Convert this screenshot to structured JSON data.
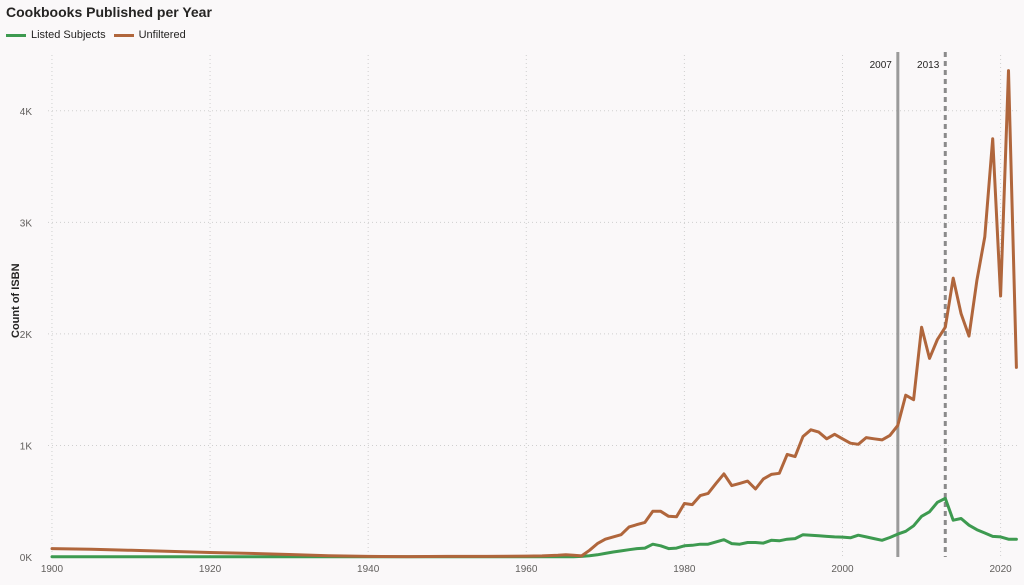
{
  "chart_data": {
    "type": "line",
    "title": "Cookbooks Published per Year",
    "xlabel": "",
    "ylabel": "Count of ISBN",
    "xlim": [
      1899.5,
      2022.2
    ],
    "ylim": [
      0,
      4500
    ],
    "x_ticks": [
      1900,
      1920,
      1940,
      1960,
      1980,
      2000,
      2020
    ],
    "y_ticks": [
      {
        "value": 0,
        "label": "0K"
      },
      {
        "value": 1000,
        "label": "1K"
      },
      {
        "value": 2000,
        "label": "2K"
      },
      {
        "value": 3000,
        "label": "3K"
      },
      {
        "value": 4000,
        "label": "4K"
      }
    ],
    "grid": true,
    "legend_position": "top-left",
    "reference_lines": [
      {
        "x": 2007,
        "label": "2007",
        "style": "solid"
      },
      {
        "x": 2013,
        "label": "2013",
        "style": "dashed"
      }
    ],
    "series": [
      {
        "name": "Listed Subjects",
        "color": "#3d9a50",
        "points": [
          [
            1900,
            2
          ],
          [
            1920,
            2
          ],
          [
            1940,
            2
          ],
          [
            1960,
            2
          ],
          [
            1966,
            3
          ],
          [
            1967,
            5
          ],
          [
            1968,
            12
          ],
          [
            1969,
            20
          ],
          [
            1970,
            32
          ],
          [
            1971,
            45
          ],
          [
            1972,
            55
          ],
          [
            1973,
            65
          ],
          [
            1974,
            75
          ],
          [
            1975,
            80
          ],
          [
            1976,
            115
          ],
          [
            1977,
            100
          ],
          [
            1978,
            75
          ],
          [
            1979,
            80
          ],
          [
            1980,
            100
          ],
          [
            1981,
            105
          ],
          [
            1982,
            115
          ],
          [
            1983,
            115
          ],
          [
            1984,
            135
          ],
          [
            1985,
            155
          ],
          [
            1986,
            120
          ],
          [
            1987,
            115
          ],
          [
            1988,
            130
          ],
          [
            1989,
            130
          ],
          [
            1990,
            125
          ],
          [
            1991,
            150
          ],
          [
            1992,
            145
          ],
          [
            1993,
            160
          ],
          [
            1994,
            165
          ],
          [
            1995,
            200
          ],
          [
            1996,
            195
          ],
          [
            1997,
            190
          ],
          [
            1998,
            185
          ],
          [
            1999,
            180
          ],
          [
            2000,
            178
          ],
          [
            2001,
            172
          ],
          [
            2002,
            195
          ],
          [
            2003,
            180
          ],
          [
            2004,
            165
          ],
          [
            2005,
            150
          ],
          [
            2006,
            175
          ],
          [
            2007,
            205
          ],
          [
            2008,
            230
          ],
          [
            2009,
            280
          ],
          [
            2010,
            365
          ],
          [
            2011,
            405
          ],
          [
            2012,
            490
          ],
          [
            2013,
            525
          ],
          [
            2014,
            330
          ],
          [
            2015,
            345
          ],
          [
            2016,
            285
          ],
          [
            2017,
            245
          ],
          [
            2018,
            215
          ],
          [
            2019,
            185
          ],
          [
            2020,
            180
          ],
          [
            2021,
            160
          ],
          [
            2022,
            160
          ]
        ]
      },
      {
        "name": "Unfiltered",
        "color": "#b0663c",
        "points": [
          [
            1900,
            75
          ],
          [
            1905,
            70
          ],
          [
            1910,
            60
          ],
          [
            1915,
            50
          ],
          [
            1920,
            40
          ],
          [
            1925,
            32
          ],
          [
            1930,
            22
          ],
          [
            1935,
            12
          ],
          [
            1940,
            5
          ],
          [
            1945,
            4
          ],
          [
            1950,
            5
          ],
          [
            1955,
            5
          ],
          [
            1960,
            8
          ],
          [
            1962,
            10
          ],
          [
            1964,
            15
          ],
          [
            1965,
            20
          ],
          [
            1966,
            15
          ],
          [
            1967,
            10
          ],
          [
            1968,
            60
          ],
          [
            1969,
            120
          ],
          [
            1970,
            160
          ],
          [
            1971,
            180
          ],
          [
            1972,
            200
          ],
          [
            1973,
            270
          ],
          [
            1974,
            290
          ],
          [
            1975,
            310
          ],
          [
            1976,
            410
          ],
          [
            1977,
            410
          ],
          [
            1978,
            365
          ],
          [
            1979,
            360
          ],
          [
            1980,
            480
          ],
          [
            1981,
            470
          ],
          [
            1982,
            550
          ],
          [
            1983,
            570
          ],
          [
            1984,
            660
          ],
          [
            1985,
            745
          ],
          [
            1986,
            640
          ],
          [
            1987,
            660
          ],
          [
            1988,
            680
          ],
          [
            1989,
            610
          ],
          [
            1990,
            700
          ],
          [
            1991,
            740
          ],
          [
            1992,
            750
          ],
          [
            1993,
            920
          ],
          [
            1994,
            900
          ],
          [
            1995,
            1080
          ],
          [
            1996,
            1140
          ],
          [
            1997,
            1120
          ],
          [
            1998,
            1060
          ],
          [
            1999,
            1100
          ],
          [
            2000,
            1060
          ],
          [
            2001,
            1020
          ],
          [
            2002,
            1010
          ],
          [
            2003,
            1070
          ],
          [
            2004,
            1060
          ],
          [
            2005,
            1050
          ],
          [
            2006,
            1090
          ],
          [
            2007,
            1180
          ],
          [
            2008,
            1450
          ],
          [
            2009,
            1410
          ],
          [
            2010,
            2060
          ],
          [
            2011,
            1780
          ],
          [
            2012,
            1950
          ],
          [
            2013,
            2060
          ],
          [
            2014,
            2500
          ],
          [
            2015,
            2180
          ],
          [
            2016,
            1980
          ],
          [
            2017,
            2480
          ],
          [
            2018,
            2870
          ],
          [
            2019,
            3750
          ],
          [
            2020,
            2340
          ],
          [
            2021,
            4360
          ],
          [
            2022,
            1700
          ]
        ]
      }
    ]
  }
}
